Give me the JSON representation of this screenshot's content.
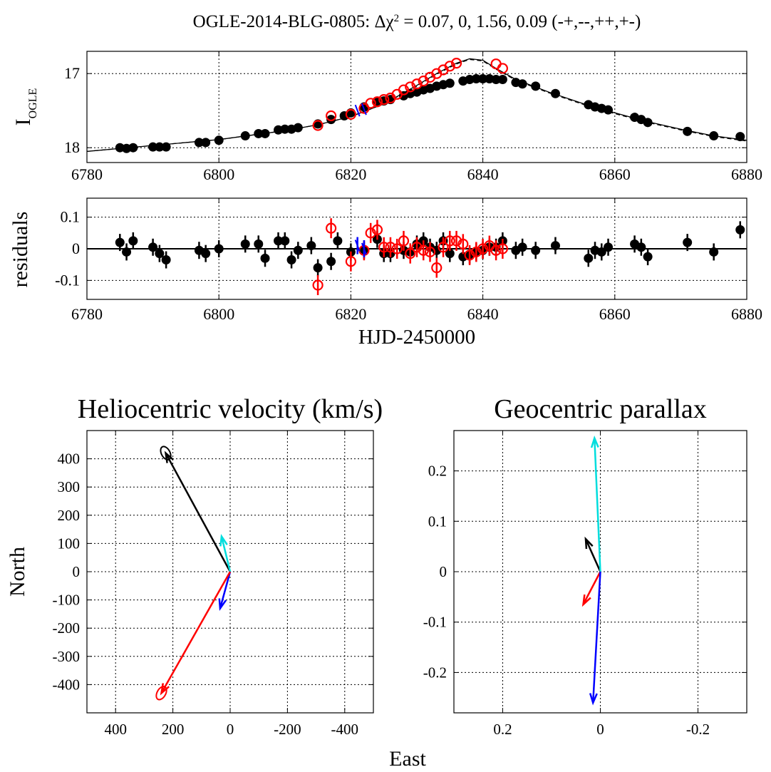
{
  "figure": {
    "title_prefix": "OGLE-2014-BLG-0805: Δχ",
    "title_sup": "2",
    "title_suffix": " = 0.07, 0, 1.56, 0.09 (-+,--,++,+-)",
    "shared_xlabel": "HJD-2450000",
    "north_label": "North",
    "east_label": "East"
  },
  "colors": {
    "black": "#000000",
    "red": "#ff0000",
    "blue": "#0000ff",
    "cyan": "#00dddd"
  },
  "chart_data": [
    {
      "id": "lightcurve",
      "type": "scatter",
      "ylabel_main": "I",
      "ylabel_sub": "OGLE",
      "xlim": [
        6780,
        6880
      ],
      "ylim": [
        18.2,
        16.7
      ],
      "xticks": [
        6780,
        6800,
        6820,
        6840,
        6860,
        6880
      ],
      "yticks": [
        17,
        18
      ],
      "grid": true,
      "series": [
        {
          "color": "black",
          "marker": "filled-circle",
          "x": [
            6785,
            6786,
            6787,
            6790,
            6791,
            6792,
            6797,
            6798,
            6800,
            6804,
            6806,
            6807,
            6809,
            6810,
            6811,
            6812,
            6815,
            6817,
            6819,
            6820,
            6822,
            6824,
            6825,
            6826,
            6828,
            6829,
            6830,
            6831,
            6832,
            6833,
            6834,
            6835,
            6837,
            6838,
            6839,
            6840,
            6841,
            6842,
            6843,
            6845,
            6846,
            6848,
            6851,
            6856,
            6857,
            6858,
            6859,
            6863,
            6864,
            6865,
            6871,
            6875,
            6879
          ],
          "y": [
            18.0,
            18.01,
            18.0,
            17.99,
            17.99,
            17.99,
            17.93,
            17.93,
            17.9,
            17.84,
            17.81,
            17.81,
            17.76,
            17.75,
            17.75,
            17.73,
            17.68,
            17.62,
            17.57,
            17.53,
            17.45,
            17.39,
            17.37,
            17.35,
            17.3,
            17.27,
            17.25,
            17.22,
            17.2,
            17.17,
            17.15,
            17.13,
            17.1,
            17.08,
            17.07,
            17.07,
            17.07,
            17.08,
            17.08,
            17.12,
            17.14,
            17.17,
            17.27,
            17.42,
            17.45,
            17.47,
            17.49,
            17.59,
            17.62,
            17.66,
            17.78,
            17.84,
            17.85
          ]
        },
        {
          "color": "red",
          "marker": "open-circle",
          "x": [
            6815,
            6817,
            6820,
            6822,
            6823,
            6824,
            6825,
            6826,
            6827,
            6828,
            6829,
            6830,
            6831,
            6832,
            6833,
            6834,
            6835,
            6836,
            6842,
            6843
          ],
          "y": [
            17.7,
            17.57,
            17.55,
            17.47,
            17.4,
            17.38,
            17.35,
            17.33,
            17.28,
            17.22,
            17.18,
            17.14,
            17.1,
            17.05,
            17.0,
            16.95,
            16.9,
            16.86,
            16.87,
            16.93
          ]
        },
        {
          "color": "blue",
          "marker": "small-tick",
          "x": [
            6821,
            6822
          ],
          "y": [
            17.5,
            17.48
          ]
        }
      ],
      "model_curves": [
        {
          "style": "solid",
          "x": [
            6780,
            6790,
            6800,
            6810,
            6815,
            6820,
            6825,
            6830,
            6833,
            6836,
            6838,
            6840,
            6842,
            6845,
            6850,
            6855,
            6860,
            6865,
            6870,
            6875,
            6880
          ],
          "y": [
            18.05,
            17.97,
            17.89,
            17.77,
            17.69,
            17.58,
            17.41,
            17.16,
            17.0,
            16.86,
            16.8,
            16.82,
            16.93,
            17.08,
            17.25,
            17.4,
            17.53,
            17.65,
            17.75,
            17.84,
            17.9
          ]
        },
        {
          "style": "dashed",
          "x": [
            6780,
            6790,
            6800,
            6810,
            6815,
            6820,
            6825,
            6830,
            6833,
            6836,
            6838,
            6840,
            6842,
            6845,
            6850,
            6855,
            6860,
            6865,
            6870,
            6875,
            6880
          ],
          "y": [
            18.05,
            17.97,
            17.89,
            17.77,
            17.69,
            17.58,
            17.41,
            17.17,
            17.01,
            16.87,
            16.81,
            16.83,
            16.94,
            17.09,
            17.26,
            17.41,
            17.54,
            17.66,
            17.76,
            17.85,
            17.91
          ]
        }
      ]
    },
    {
      "id": "residuals",
      "type": "scatter",
      "ylabel": "residuals",
      "xlim": [
        6780,
        6880
      ],
      "ylim": [
        -0.16,
        0.16
      ],
      "xticks": [
        6780,
        6800,
        6820,
        6840,
        6860,
        6880
      ],
      "yticks": [
        0.1,
        0,
        -0.1
      ],
      "ytick_labels": [
        "0.1",
        "0",
        "-0.1"
      ],
      "grid": true,
      "series": [
        {
          "color": "black",
          "marker": "filled-circle",
          "x": [
            6785,
            6786,
            6787,
            6790,
            6791,
            6792,
            6797,
            6798,
            6800,
            6804,
            6806,
            6807,
            6809,
            6810,
            6811,
            6812,
            6814,
            6815,
            6817,
            6818,
            6820,
            6822,
            6824,
            6825,
            6826,
            6828,
            6829,
            6830,
            6831,
            6832,
            6833,
            6834,
            6835,
            6837,
            6838,
            6839,
            6840,
            6841,
            6842,
            6843,
            6845,
            6846,
            6848,
            6851,
            6856,
            6857,
            6858,
            6859,
            6863,
            6864,
            6865,
            6871,
            6875,
            6879
          ],
          "y": [
            0.02,
            -0.01,
            0.025,
            0.005,
            -0.015,
            -0.035,
            -0.005,
            -0.015,
            0.0,
            0.015,
            0.015,
            -0.03,
            0.025,
            0.025,
            -0.035,
            -0.005,
            0.01,
            -0.06,
            -0.04,
            0.025,
            -0.01,
            -0.005,
            0.03,
            -0.015,
            -0.015,
            -0.005,
            -0.01,
            0.015,
            0.025,
            0.005,
            -0.005,
            0.025,
            -0.015,
            -0.025,
            -0.02,
            -0.01,
            -0.005,
            0.005,
            0.005,
            0.025,
            -0.005,
            0.005,
            -0.005,
            0.01,
            -0.03,
            -0.005,
            -0.01,
            0.005,
            0.015,
            0.005,
            -0.025,
            0.02,
            -0.01,
            0.06
          ]
        },
        {
          "color": "red",
          "marker": "open-circle",
          "x": [
            6815,
            6817,
            6820,
            6822,
            6823,
            6824,
            6825,
            6826,
            6827,
            6828,
            6829,
            6830,
            6831,
            6832,
            6833,
            6834,
            6835,
            6836,
            6837,
            6838,
            6839,
            6840,
            6841,
            6842,
            6843
          ],
          "y": [
            -0.115,
            0.065,
            -0.04,
            -0.005,
            0.05,
            0.06,
            0.005,
            0.005,
            0.0,
            0.025,
            -0.015,
            0.005,
            -0.005,
            -0.01,
            -0.06,
            0.005,
            0.025,
            0.025,
            0.015,
            -0.02,
            -0.01,
            0.0,
            0.01,
            -0.005,
            0.0
          ]
        },
        {
          "color": "blue",
          "marker": "small-tick",
          "x": [
            6821,
            6822
          ],
          "y": [
            0.01,
            0.0
          ]
        }
      ]
    },
    {
      "id": "velocity",
      "type": "vector",
      "title": "Heliocentric velocity (km/s)",
      "xlim": [
        500,
        -500
      ],
      "ylim": [
        -500,
        500
      ],
      "xticks": [
        400,
        200,
        0,
        -200,
        -400
      ],
      "yticks": [
        400,
        300,
        200,
        100,
        0,
        -100,
        -200,
        -300,
        -400
      ],
      "grid": true,
      "vectors": [
        {
          "color": "black",
          "x": 225,
          "y": 420
        },
        {
          "color": "cyan",
          "x": 30,
          "y": 125
        },
        {
          "color": "blue",
          "x": 35,
          "y": -130
        },
        {
          "color": "red",
          "x": 240,
          "y": -430
        }
      ]
    },
    {
      "id": "parallax",
      "type": "vector",
      "title": "Geocentric parallax",
      "xlim": [
        0.3,
        -0.3
      ],
      "ylim": [
        -0.28,
        0.28
      ],
      "xticks": [
        0.2,
        0,
        -0.2
      ],
      "yticks": [
        0.2,
        0.1,
        0,
        -0.1,
        -0.2
      ],
      "grid": true,
      "vectors": [
        {
          "color": "black",
          "x": 0.03,
          "y": 0.065
        },
        {
          "color": "cyan",
          "x": 0.012,
          "y": 0.265
        },
        {
          "color": "red",
          "x": 0.035,
          "y": -0.065
        },
        {
          "color": "blue",
          "x": 0.015,
          "y": -0.26
        }
      ]
    }
  ]
}
